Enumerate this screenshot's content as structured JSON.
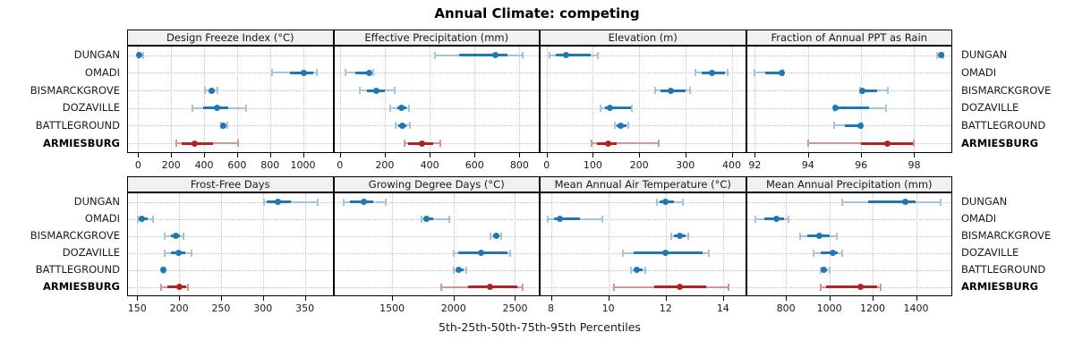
{
  "title": "Annual Climate: competing",
  "x_axis_title": "5th-25th-50th-75th-95th Percentiles",
  "sites": [
    "DUNGAN",
    "OMADI",
    "BISMARCKGROVE",
    "DOZAVILLE",
    "BATTLEGROUND",
    "ARMIESBURG"
  ],
  "highlight_site": "ARMIESBURG",
  "colors": {
    "series_normal": "#1f77b4",
    "series_normal_light": "#a5c4dd",
    "series_highlight": "#b22222",
    "series_highlight_light": "#d89595",
    "strip_background": "#f0f0f0",
    "panel_border": "#000000",
    "gridline": "#c3c3c3"
  },
  "chart_data": {
    "type": "dotplot-percentiles",
    "title": "Annual Climate: competing",
    "xlabel": "5th-25th-50th-75th-95th Percentiles",
    "percentile_labels": [
      "5th",
      "25th",
      "50th",
      "75th",
      "95th"
    ],
    "legend_position": "none",
    "grid": "dotted",
    "layout": "2 rows x 4 columns of panels, site labels on both left and right sides",
    "panels": [
      {
        "title": "Design Freeze Index (°C)",
        "xlim": [
          -62,
          1179
        ],
        "ticks": [
          0,
          200,
          400,
          600,
          800,
          1000
        ],
        "series": [
          {
            "site": "DUNGAN",
            "p": [
              0,
              3,
              8,
              18,
              30
            ]
          },
          {
            "site": "OMADI",
            "p": [
              810,
              920,
              1005,
              1065,
              1085
            ]
          },
          {
            "site": "BISMARCKGROVE",
            "p": [
              405,
              425,
              445,
              465,
              480
            ]
          },
          {
            "site": "DOZAVILLE",
            "p": [
              330,
              395,
              480,
              545,
              655
            ]
          },
          {
            "site": "BATTLEGROUND",
            "p": [
              503,
              510,
              519,
              530,
              540
            ]
          },
          {
            "site": "ARMIESBURG",
            "p": [
              230,
              265,
              342,
              455,
              605
            ]
          }
        ]
      },
      {
        "title": "Effective Precipitation (mm)",
        "xlim": [
          -25,
          886
        ],
        "ticks": [
          0,
          200,
          400,
          600,
          800
        ],
        "series": [
          {
            "site": "DUNGAN",
            "p": [
              425,
              530,
              691,
              745,
              815
            ]
          },
          {
            "site": "OMADI",
            "p": [
              25,
              70,
              132,
              141,
              148
            ]
          },
          {
            "site": "BISMARCKGROVE",
            "p": [
              90,
              120,
              161,
              200,
              246
            ]
          },
          {
            "site": "DOZAVILLE",
            "p": [
              226,
              255,
              276,
              295,
              309
            ]
          },
          {
            "site": "BATTLEGROUND",
            "p": [
              250,
              262,
              278,
              295,
              311
            ]
          },
          {
            "site": "ARMIESBURG",
            "p": [
              287,
              305,
              364,
              416,
              448
            ]
          }
        ]
      },
      {
        "title": "Elevation (m)",
        "xlim": [
          -13,
          429
        ],
        "ticks": [
          0,
          100,
          200,
          300,
          400
        ],
        "series": [
          {
            "site": "DUNGAN",
            "p": [
              6,
              20,
              43,
              95,
              111
            ]
          },
          {
            "site": "OMADI",
            "p": [
              322,
              335,
              358,
              386,
              392
            ]
          },
          {
            "site": "BISMARCKGROVE",
            "p": [
              234,
              247,
              269,
              300,
              311
            ]
          },
          {
            "site": "DOZAVILLE",
            "p": [
              117,
              127,
              136,
              182,
              185
            ]
          },
          {
            "site": "BATTLEGROUND",
            "p": [
              147,
              152,
              161,
              172,
              177
            ]
          },
          {
            "site": "ARMIESBURG",
            "p": [
              98,
              108,
              133,
              152,
              242
            ]
          }
        ]
      },
      {
        "title": "Fraction of Annual PPT as Rain",
        "xlim": [
          91.7,
          99.4
        ],
        "ticks": [
          92,
          94,
          96,
          98
        ],
        "series": [
          {
            "site": "DUNGAN",
            "p": [
              98.85,
              98.95,
              99.0,
              99.05,
              99.1
            ]
          },
          {
            "site": "OMADI",
            "p": [
              92.0,
              92.4,
              93.0,
              93.02,
              93.05
            ]
          },
          {
            "site": "BISMARCKGROVE",
            "p": [
              95.95,
              96.0,
              96.05,
              96.6,
              97.0
            ]
          },
          {
            "site": "DOZAVILLE",
            "p": [
              94.98,
              95.0,
              95.05,
              96.3,
              96.95
            ]
          },
          {
            "site": "BATTLEGROUND",
            "p": [
              95.0,
              95.4,
              95.98,
              96.0,
              96.02
            ]
          },
          {
            "site": "ARMIESBURG",
            "p": [
              94.0,
              96.0,
              97.0,
              97.95,
              98.0
            ]
          }
        ]
      },
      {
        "title": "Frost-Free Days",
        "xlim": [
          139,
          383
        ],
        "ticks": [
          150,
          200,
          250,
          300,
          350
        ],
        "series": [
          {
            "site": "DUNGAN",
            "p": [
              301,
              305,
              318,
              333,
              365
            ]
          },
          {
            "site": "OMADI",
            "p": [
              151,
              152,
              156,
              162,
              169
            ]
          },
          {
            "site": "BISMARCKGROVE",
            "p": [
              183,
              190,
              196,
              201,
              205
            ]
          },
          {
            "site": "DOZAVILLE",
            "p": [
              183,
              190,
              199,
              207,
              215
            ]
          },
          {
            "site": "BATTLEGROUND",
            "p": [
              180,
              180,
              181,
              182,
              183
            ]
          },
          {
            "site": "ARMIESBURG",
            "p": [
              178,
              186,
              200,
              208,
              211
            ]
          }
        ]
      },
      {
        "title": "Growing Degree Days (°C)",
        "xlim": [
          1030,
          2693
        ],
        "ticks": [
          1500,
          2000,
          2500
        ],
        "series": [
          {
            "site": "DUNGAN",
            "p": [
              1106,
              1160,
              1267,
              1345,
              1446
            ]
          },
          {
            "site": "OMADI",
            "p": [
              1739,
              1753,
              1779,
              1836,
              1965
            ]
          },
          {
            "site": "BISMARCKGROVE",
            "p": [
              2300,
              2325,
              2347,
              2370,
              2390
            ]
          },
          {
            "site": "DOZAVILLE",
            "p": [
              1998,
              2040,
              2223,
              2440,
              2461
            ]
          },
          {
            "site": "BATTLEGROUND",
            "p": [
              2003,
              2020,
              2043,
              2080,
              2103
            ]
          },
          {
            "site": "ARMIESBURG",
            "p": [
              1897,
              2120,
              2294,
              2520,
              2564
            ]
          }
        ]
      },
      {
        "title": "Mean Annual Air Temperature (°C)",
        "xlim": [
          7.64,
          14.77
        ],
        "ticks": [
          8,
          10,
          12,
          14
        ],
        "series": [
          {
            "site": "DUNGAN",
            "p": [
              11.7,
              11.8,
              12.0,
              12.3,
              12.6
            ]
          },
          {
            "site": "OMADI",
            "p": [
              7.9,
              8.1,
              8.3,
              9.0,
              9.8
            ]
          },
          {
            "site": "BISMARCKGROVE",
            "p": [
              12.2,
              12.3,
              12.5,
              12.7,
              12.8
            ]
          },
          {
            "site": "DOZAVILLE",
            "p": [
              10.5,
              10.9,
              12.0,
              13.3,
              13.5
            ]
          },
          {
            "site": "BATTLEGROUND",
            "p": [
              10.8,
              10.9,
              11.0,
              11.2,
              11.3
            ]
          },
          {
            "site": "ARMIESBURG",
            "p": [
              10.2,
              11.6,
              12.5,
              13.4,
              14.2
            ]
          }
        ]
      },
      {
        "title": "Mean Annual Precipitation (mm)",
        "xlim": [
          620,
          1563
        ],
        "ticks": [
          800,
          1000,
          1200,
          1400
        ],
        "series": [
          {
            "site": "DUNGAN",
            "p": [
              1059,
              1180,
              1351,
              1400,
              1515
            ]
          },
          {
            "site": "OMADI",
            "p": [
              658,
              700,
              758,
              790,
              811
            ]
          },
          {
            "site": "BISMARCKGROVE",
            "p": [
              866,
              900,
              954,
              1000,
              1034
            ]
          },
          {
            "site": "DOZAVILLE",
            "p": [
              926,
              960,
              1017,
              1040,
              1059
            ]
          },
          {
            "site": "BATTLEGROUND",
            "p": [
              961,
              968,
              975,
              990,
              1000
            ]
          },
          {
            "site": "ARMIESBURG",
            "p": [
              961,
              985,
              1143,
              1220,
              1238
            ]
          }
        ]
      }
    ]
  }
}
